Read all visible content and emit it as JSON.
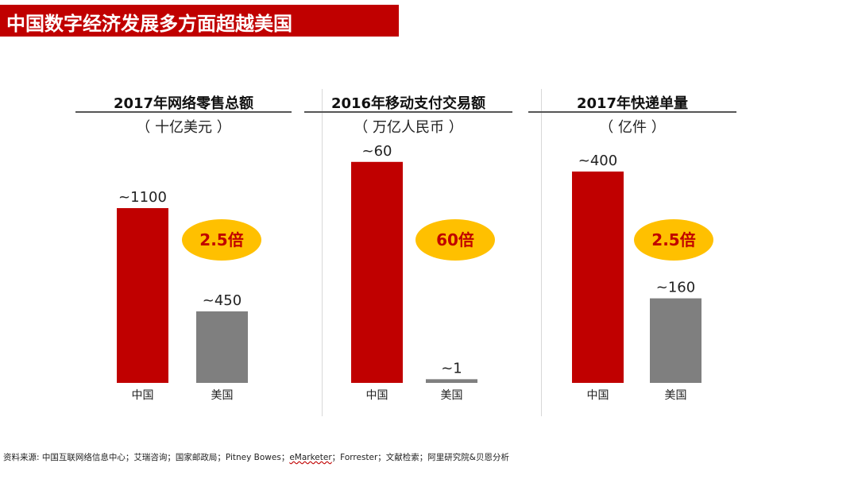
{
  "header": {
    "title": "中国数字经济发展多方面超越美国"
  },
  "colors": {
    "china": "#c00000",
    "usa": "#7f7f7f",
    "badge": "#ffc000",
    "badge_text": "#c00000",
    "title_bar": "#c00000"
  },
  "chart_data": [
    {
      "type": "bar",
      "title": "2017年网络零售总额",
      "unit": "（ 十亿美元 ）",
      "categories": [
        "中国",
        "美国"
      ],
      "values": [
        1100,
        450
      ],
      "value_labels": [
        "~1100",
        "~450"
      ],
      "ylim": [
        0,
        1500
      ],
      "ratio_label": "2.5倍"
    },
    {
      "type": "bar",
      "title": "2016年移动支付交易额",
      "unit": "（ 万亿人民币 ）",
      "categories": [
        "中国",
        "美国"
      ],
      "values": [
        60,
        1
      ],
      "value_labels": [
        "~60",
        "~1"
      ],
      "ylim": [
        0,
        64.7
      ],
      "ratio_label": "60倍"
    },
    {
      "type": "bar",
      "title": "2017年快递单量",
      "unit": "（ 亿件 ）",
      "categories": [
        "中国",
        "美国"
      ],
      "values": [
        400,
        160
      ],
      "value_labels": [
        "~400",
        "~160"
      ],
      "ylim": [
        0,
        451
      ],
      "ratio_label": "2.5倍"
    }
  ],
  "footer": {
    "source_prefix": "资料来源: 中国互联网络信息中心；艾瑞咨询；国家邮政局；Pitney Bowes；",
    "source_emarketer": "eMarketer",
    "source_suffix": "；Forrester；文献检索；阿里研究院&贝恩分析"
  }
}
